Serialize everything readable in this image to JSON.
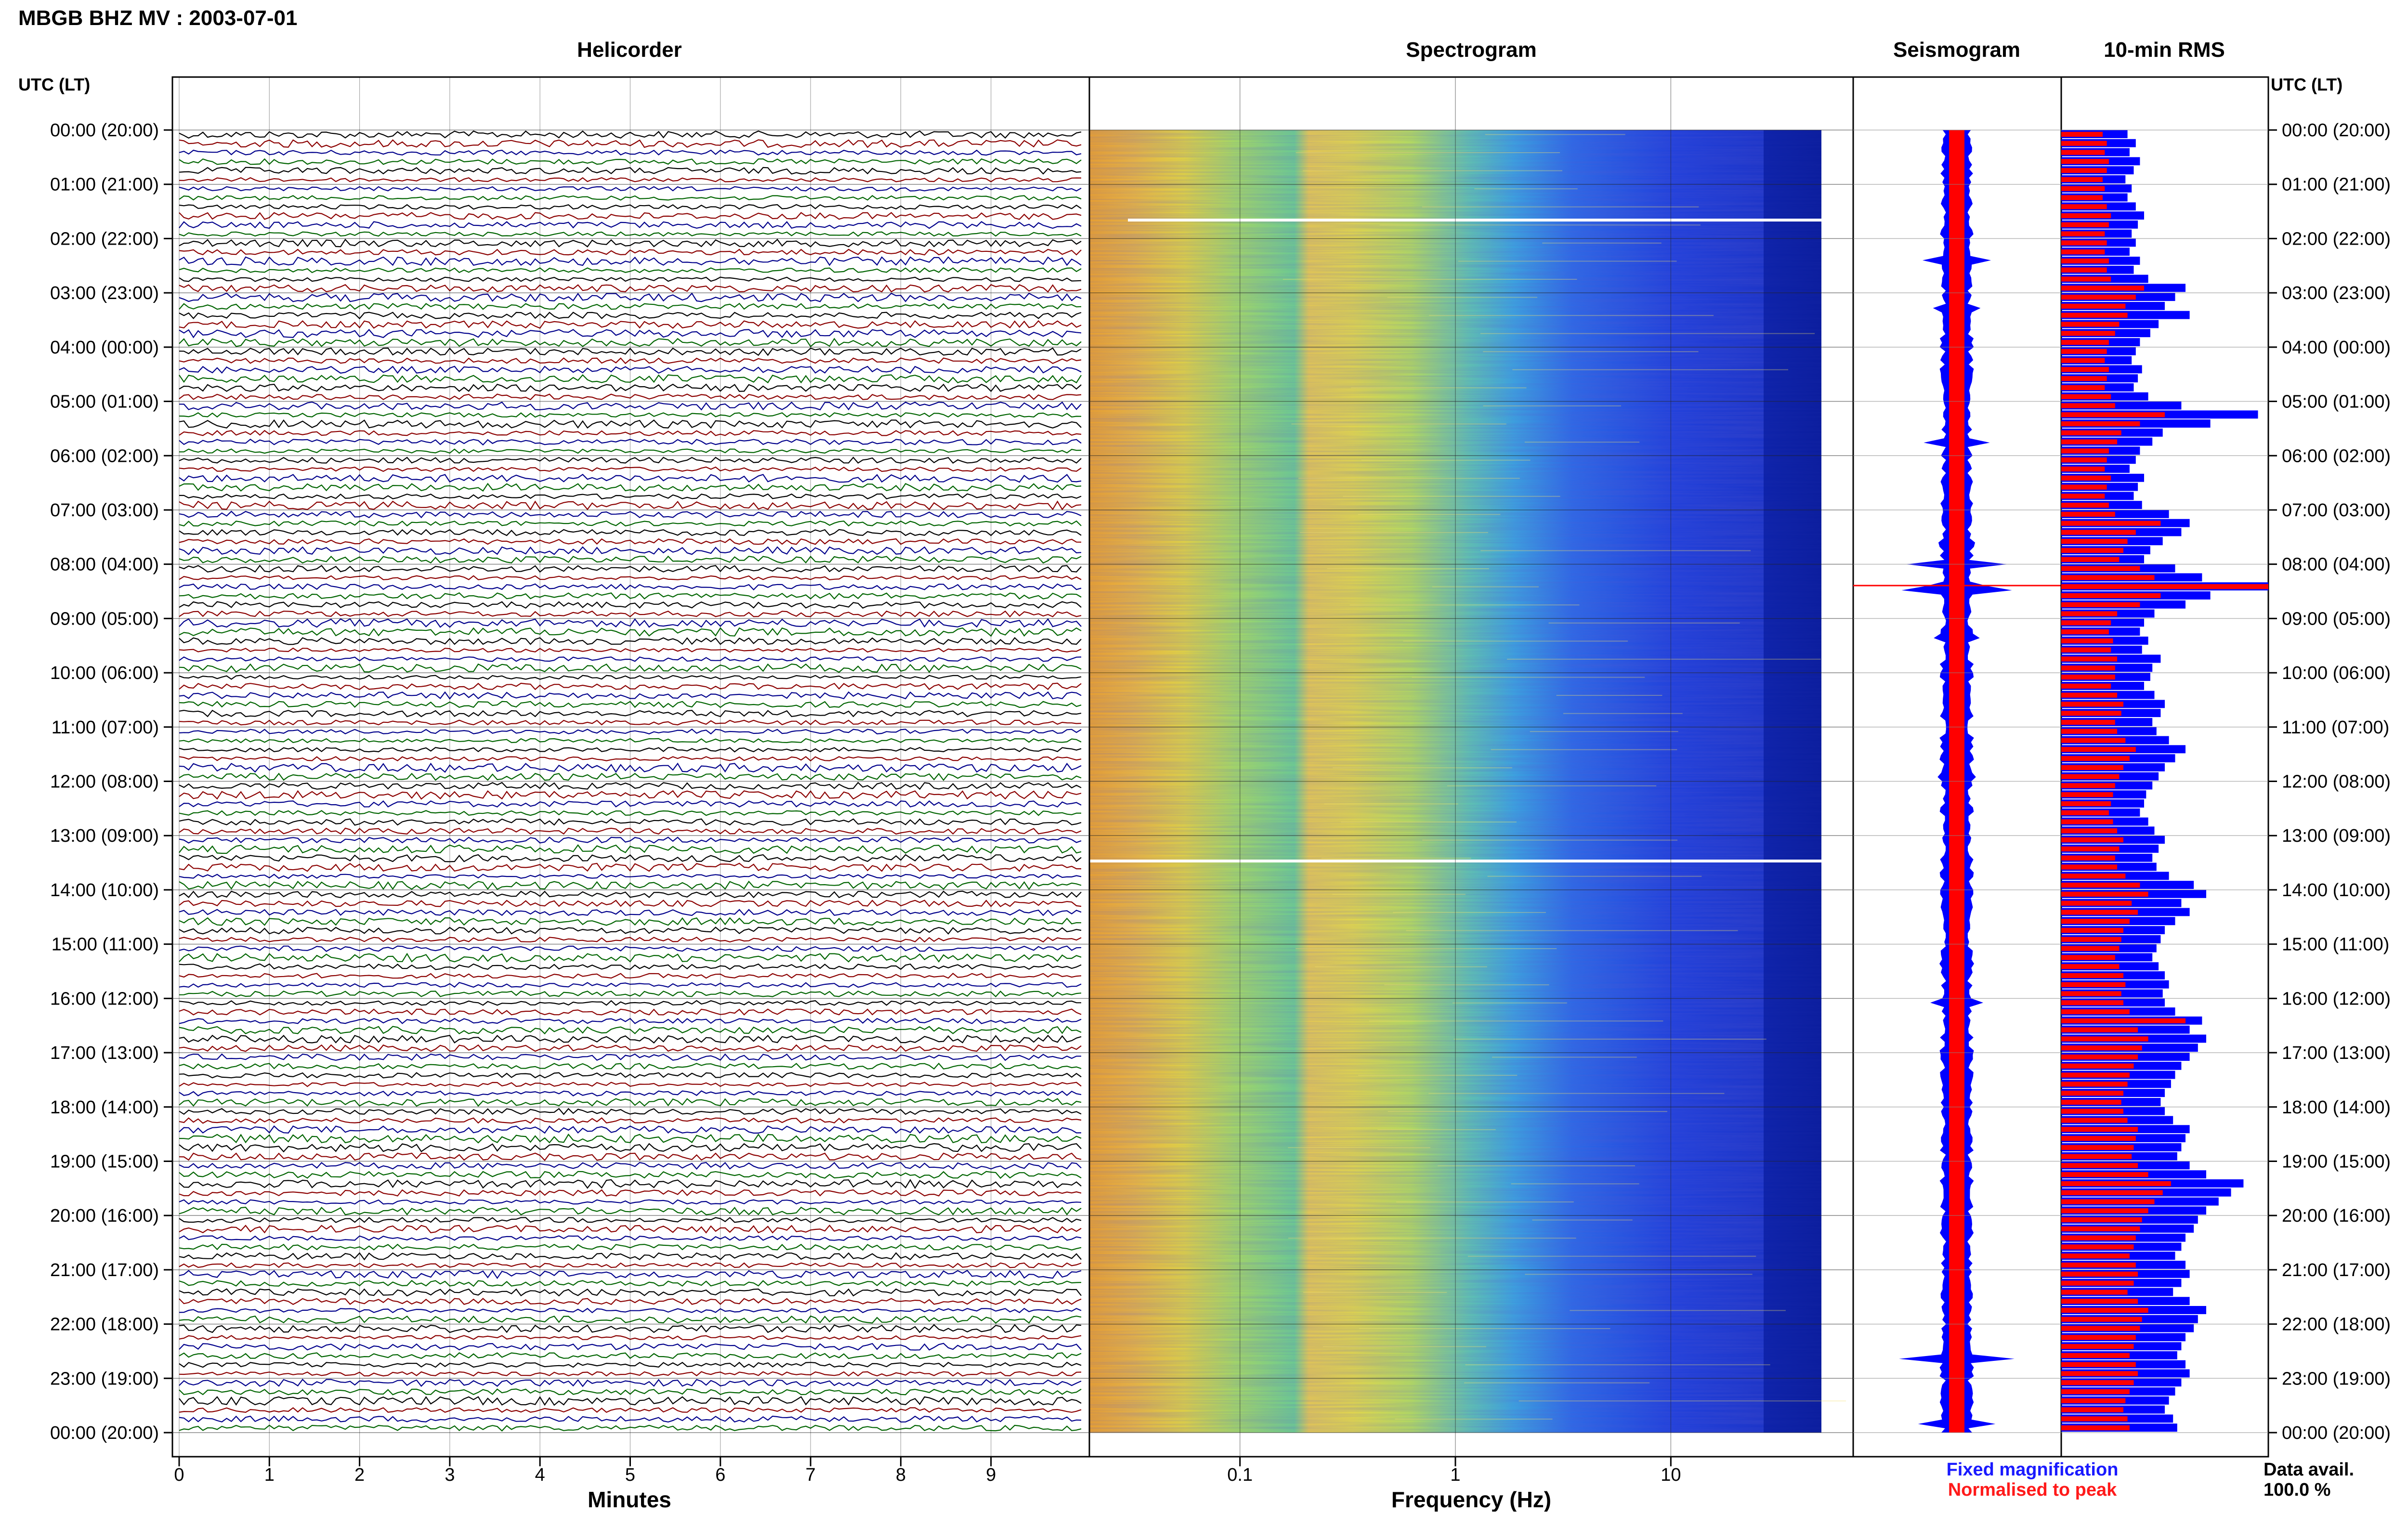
{
  "header": {
    "station_title": "MBGB BHZ MV : 2003-07-01",
    "time_axis_title": "UTC (LT)",
    "time_axis_title_right": "UTC (LT)"
  },
  "panels": {
    "helicorder": "Helicorder",
    "spectrogram": "Spectrogram",
    "seismogram": "Seismogram",
    "rms": "10-min RMS"
  },
  "axes": {
    "minutes_label": "Minutes",
    "frequency_label": "Frequency (Hz)"
  },
  "legend": {
    "fixed": "Fixed magnification",
    "normalised": "Normalised to peak",
    "fixed_color": "#1a1aff",
    "normalised_color": "#ff1a1a"
  },
  "data_availability": {
    "label": "Data avail.",
    "value": "100.0 %"
  },
  "colors": {
    "trace_cycle": [
      "#000000",
      "#8b0000",
      "#00008b",
      "#006400"
    ],
    "rms_fixed": "#0000ff",
    "rms_normalised": "#ff0000",
    "seismo_envelope": "#0000ff",
    "seismo_core": "#ff0000"
  },
  "chart_data": {
    "type": "heatmap",
    "time_ticks": [
      "00:00 (20:00)",
      "01:00 (21:00)",
      "02:00 (22:00)",
      "03:00 (23:00)",
      "04:00 (00:00)",
      "05:00 (01:00)",
      "06:00 (02:00)",
      "07:00 (03:00)",
      "08:00 (04:00)",
      "09:00 (05:00)",
      "10:00 (06:00)",
      "11:00 (07:00)",
      "12:00 (08:00)",
      "13:00 (09:00)",
      "14:00 (10:00)",
      "15:00 (11:00)",
      "16:00 (12:00)",
      "17:00 (13:00)",
      "18:00 (14:00)",
      "19:00 (15:00)",
      "20:00 (16:00)",
      "21:00 (17:00)",
      "22:00 (18:00)",
      "23:00 (19:00)",
      "00:00 (20:00)"
    ],
    "minute_ticks": [
      "0",
      "1",
      "2",
      "3",
      "4",
      "5",
      "6",
      "7",
      "8",
      "9"
    ],
    "frequency_ticks": [
      {
        "label": "0.1",
        "hz": 0.1
      },
      {
        "label": "1",
        "hz": 1
      },
      {
        "label": "10",
        "hz": 10
      }
    ],
    "frequency_range_hz": [
      0.02,
      50
    ],
    "helicorder_rows": 144,
    "rows_per_hour": 6,
    "rms_fixed_relative": [
      0.32,
      0.36,
      0.33,
      0.38,
      0.35,
      0.31,
      0.34,
      0.32,
      0.36,
      0.4,
      0.37,
      0.34,
      0.36,
      0.33,
      0.38,
      0.35,
      0.42,
      0.6,
      0.55,
      0.5,
      0.62,
      0.47,
      0.43,
      0.38,
      0.36,
      0.34,
      0.39,
      0.37,
      0.35,
      0.42,
      0.58,
      0.95,
      0.72,
      0.49,
      0.44,
      0.38,
      0.36,
      0.33,
      0.4,
      0.37,
      0.35,
      0.39,
      0.52,
      0.62,
      0.58,
      0.49,
      0.43,
      0.4,
      0.55,
      0.68,
      1.0,
      0.72,
      0.6,
      0.45,
      0.4,
      0.38,
      0.42,
      0.39,
      0.48,
      0.44,
      0.43,
      0.4,
      0.45,
      0.5,
      0.48,
      0.44,
      0.46,
      0.52,
      0.6,
      0.55,
      0.5,
      0.47,
      0.44,
      0.41,
      0.4,
      0.38,
      0.42,
      0.45,
      0.5,
      0.47,
      0.44,
      0.46,
      0.52,
      0.64,
      0.7,
      0.58,
      0.62,
      0.55,
      0.5,
      0.48,
      0.46,
      0.44,
      0.47,
      0.5,
      0.52,
      0.49,
      0.5,
      0.55,
      0.68,
      0.62,
      0.7,
      0.66,
      0.62,
      0.58,
      0.55,
      0.53,
      0.5,
      0.48,
      0.5,
      0.54,
      0.62,
      0.6,
      0.58,
      0.56,
      0.62,
      0.7,
      0.88,
      0.82,
      0.76,
      0.7,
      0.66,
      0.64,
      0.6,
      0.58,
      0.55,
      0.6,
      0.62,
      0.58,
      0.54,
      0.62,
      0.7,
      0.66,
      0.64,
      0.6,
      0.58,
      0.56,
      0.6,
      0.62,
      0.58,
      0.55,
      0.52,
      0.5,
      0.54,
      0.56
    ],
    "rms_normalised_relative": [
      0.2,
      0.22,
      0.21,
      0.23,
      0.22,
      0.2,
      0.21,
      0.2,
      0.22,
      0.24,
      0.23,
      0.21,
      0.22,
      0.21,
      0.23,
      0.22,
      0.24,
      0.4,
      0.36,
      0.31,
      0.32,
      0.28,
      0.26,
      0.23,
      0.22,
      0.21,
      0.23,
      0.22,
      0.21,
      0.24,
      0.26,
      0.5,
      0.38,
      0.29,
      0.27,
      0.23,
      0.22,
      0.21,
      0.24,
      0.22,
      0.21,
      0.23,
      0.26,
      0.48,
      0.36,
      0.32,
      0.3,
      0.28,
      0.38,
      0.45,
      1.0,
      0.48,
      0.38,
      0.27,
      0.24,
      0.23,
      0.25,
      0.24,
      0.27,
      0.26,
      0.26,
      0.24,
      0.27,
      0.3,
      0.29,
      0.26,
      0.27,
      0.31,
      0.36,
      0.33,
      0.3,
      0.28,
      0.26,
      0.25,
      0.24,
      0.23,
      0.25,
      0.27,
      0.3,
      0.28,
      0.26,
      0.27,
      0.31,
      0.38,
      0.42,
      0.34,
      0.37,
      0.33,
      0.3,
      0.29,
      0.28,
      0.26,
      0.28,
      0.3,
      0.31,
      0.29,
      0.3,
      0.33,
      0.6,
      0.37,
      0.42,
      0.39,
      0.37,
      0.35,
      0.33,
      0.32,
      0.3,
      0.29,
      0.3,
      0.32,
      0.37,
      0.36,
      0.35,
      0.34,
      0.37,
      0.42,
      0.53,
      0.49,
      0.45,
      0.42,
      0.39,
      0.38,
      0.36,
      0.35,
      0.33,
      0.36,
      0.37,
      0.35,
      0.32,
      0.37,
      0.42,
      0.39,
      0.38,
      0.36,
      0.35,
      0.33,
      0.36,
      0.37,
      0.35,
      0.33,
      0.31,
      0.3,
      0.32,
      0.33
    ]
  }
}
